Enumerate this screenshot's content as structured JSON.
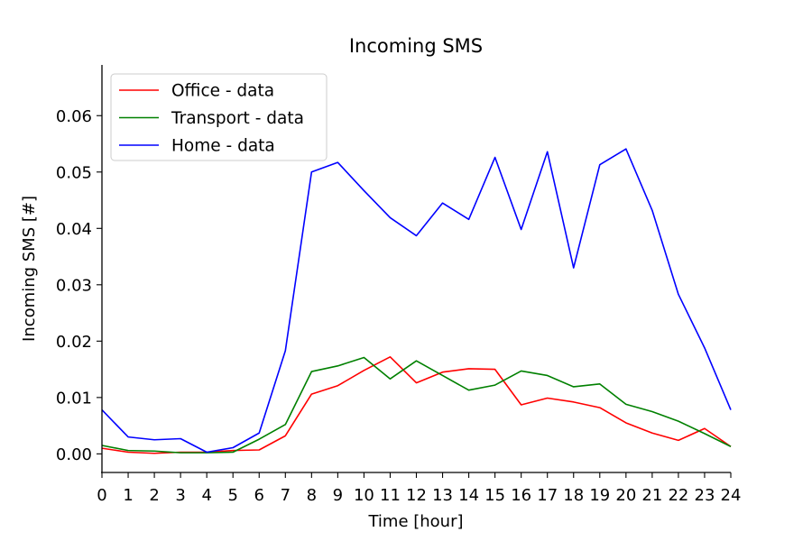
{
  "chart_data": {
    "type": "line",
    "title": "Incoming SMS",
    "xlabel": "Time [hour]",
    "ylabel": "Incoming SMS [#]",
    "xlim": [
      0,
      24
    ],
    "ylim": [
      -0.0033,
      0.069
    ],
    "xticks": [
      0,
      1,
      2,
      3,
      4,
      5,
      6,
      7,
      8,
      9,
      10,
      11,
      12,
      13,
      14,
      15,
      16,
      17,
      18,
      19,
      20,
      21,
      22,
      23,
      24
    ],
    "yticks": [
      0.0,
      0.01,
      0.02,
      0.03,
      0.04,
      0.05,
      0.06
    ],
    "ytick_labels": [
      "0.00",
      "0.01",
      "0.02",
      "0.03",
      "0.04",
      "0.05",
      "0.06"
    ],
    "grid": false,
    "legend_position": "top-left",
    "x": [
      0,
      1,
      2,
      3,
      4,
      5,
      6,
      7,
      8,
      9,
      10,
      11,
      12,
      13,
      14,
      15,
      16,
      17,
      18,
      19,
      20,
      21,
      22,
      23,
      24
    ],
    "series": [
      {
        "name": "Office - data",
        "color": "#ff0000",
        "values": [
          0.001,
          0.0003,
          0.0001,
          0.0003,
          0.0003,
          0.0006,
          0.0007,
          0.0032,
          0.0106,
          0.0121,
          0.0148,
          0.0172,
          0.0126,
          0.0145,
          0.0151,
          0.015,
          0.0087,
          0.0099,
          0.0092,
          0.0082,
          0.0055,
          0.0037,
          0.0024,
          0.0045,
          0.0013
        ]
      },
      {
        "name": "Transport - data",
        "color": "#008000",
        "values": [
          0.0015,
          0.0006,
          0.0005,
          0.0002,
          0.0002,
          0.0003,
          0.0026,
          0.0052,
          0.0146,
          0.0156,
          0.0171,
          0.0133,
          0.0165,
          0.0139,
          0.0113,
          0.0122,
          0.0147,
          0.0139,
          0.0119,
          0.0124,
          0.0088,
          0.0075,
          0.0058,
          0.0036,
          0.0013
        ]
      },
      {
        "name": "Home - data",
        "color": "#0000ff",
        "values": [
          0.0078,
          0.003,
          0.0025,
          0.0027,
          0.0003,
          0.0011,
          0.0037,
          0.0183,
          0.05,
          0.0517,
          0.0467,
          0.0419,
          0.0387,
          0.0445,
          0.0416,
          0.0526,
          0.0398,
          0.0536,
          0.033,
          0.0513,
          0.0541,
          0.0432,
          0.0283,
          0.0188,
          0.0078
        ]
      }
    ]
  }
}
